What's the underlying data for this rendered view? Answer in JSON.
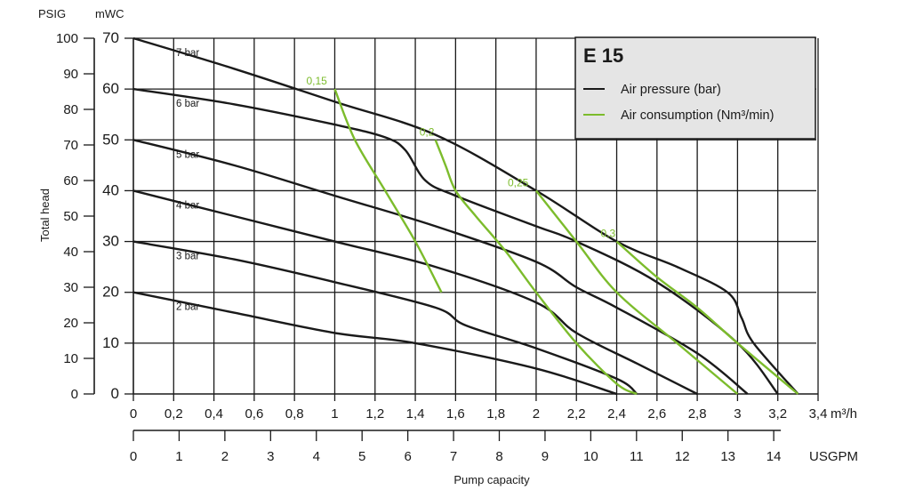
{
  "chart_data": {
    "type": "line",
    "title": "E 15",
    "xlabel": "Pump capacity",
    "ylabel": "Total head",
    "x_unit": "m³/h",
    "x2_unit": "USGPM",
    "y_unit_left": "PSIG",
    "y_unit_inner": "mWC",
    "xlim": [
      0,
      3.4
    ],
    "ylim": [
      0,
      70
    ],
    "grid": true,
    "legend_position": "top-right",
    "x_ticks": [
      0,
      0.2,
      0.4,
      0.6,
      0.8,
      1.0,
      1.2,
      1.4,
      1.6,
      1.8,
      2.0,
      2.2,
      2.4,
      2.6,
      2.8,
      3.0,
      3.2,
      3.4
    ],
    "x_tick_labels": [
      "0",
      "0,2",
      "0,4",
      "0,6",
      "0,8",
      "1",
      "1,2",
      "1,4",
      "1,6",
      "1,8",
      "2",
      "2,2",
      "2,4",
      "2,6",
      "2,8",
      "3",
      "3,2",
      "3,4"
    ],
    "x2_ticks": [
      0,
      1,
      2,
      3,
      4,
      5,
      6,
      7,
      8,
      9,
      10,
      11,
      12,
      13,
      14
    ],
    "x2_tick_labels": [
      "0",
      "1",
      "2",
      "3",
      "4",
      "5",
      "6",
      "7",
      "8",
      "9",
      "10",
      "11",
      "12",
      "13",
      "14"
    ],
    "y_ticks_mwc": [
      0,
      10,
      20,
      30,
      40,
      50,
      60,
      70
    ],
    "y_tick_labels_mwc": [
      "0",
      "10",
      "20",
      "30",
      "40",
      "50",
      "60",
      "70"
    ],
    "y_ticks_psig": [
      0,
      10,
      20,
      30,
      40,
      50,
      60,
      70,
      80,
      90,
      100
    ],
    "y_tick_labels_psig": [
      "0",
      "10",
      "20",
      "30",
      "40",
      "50",
      "60",
      "70",
      "80",
      "90",
      "100"
    ],
    "legend": [
      {
        "label": "Air pressure (bar)",
        "color": "#1a1a1a"
      },
      {
        "label": "Air consumption (Nm³/min)",
        "color": "#7cbc2c"
      }
    ],
    "series_air_pressure": [
      {
        "name": "7 bar",
        "label": "7 bar",
        "color": "#1a1a1a",
        "points": [
          [
            0,
            70
          ],
          [
            0.5,
            64
          ],
          [
            1.0,
            57.5
          ],
          [
            1.5,
            51
          ],
          [
            2.0,
            40
          ],
          [
            2.4,
            30
          ],
          [
            2.7,
            25
          ],
          [
            2.95,
            20
          ],
          [
            3.02,
            15
          ],
          [
            3.08,
            10
          ],
          [
            3.3,
            0
          ]
        ]
      },
      {
        "name": "6 bar",
        "label": "6 bar",
        "color": "#1a1a1a",
        "points": [
          [
            0,
            60
          ],
          [
            0.5,
            57
          ],
          [
            1.0,
            53
          ],
          [
            1.25,
            50.5
          ],
          [
            1.35,
            48
          ],
          [
            1.45,
            42
          ],
          [
            1.6,
            39
          ],
          [
            2.0,
            33
          ],
          [
            2.2,
            30
          ],
          [
            2.6,
            22
          ],
          [
            3.0,
            10
          ],
          [
            3.2,
            0
          ]
        ]
      },
      {
        "name": "5 bar",
        "label": "5 bar",
        "color": "#1a1a1a",
        "points": [
          [
            0,
            50
          ],
          [
            0.5,
            45
          ],
          [
            1.0,
            39
          ],
          [
            1.5,
            33
          ],
          [
            2.0,
            26
          ],
          [
            2.2,
            21
          ],
          [
            2.4,
            17
          ],
          [
            2.8,
            8
          ],
          [
            3.05,
            0
          ]
        ]
      },
      {
        "name": "4 bar",
        "label": "4 bar",
        "color": "#1a1a1a",
        "points": [
          [
            0,
            40
          ],
          [
            0.5,
            35
          ],
          [
            1.0,
            30
          ],
          [
            1.5,
            25
          ],
          [
            2.0,
            18
          ],
          [
            2.2,
            12
          ],
          [
            2.5,
            6
          ],
          [
            2.8,
            0
          ]
        ]
      },
      {
        "name": "3 bar",
        "label": "3 bar",
        "color": "#1a1a1a",
        "points": [
          [
            0,
            30
          ],
          [
            0.5,
            26.5
          ],
          [
            1.0,
            22
          ],
          [
            1.5,
            17
          ],
          [
            1.65,
            13.5
          ],
          [
            2.0,
            9
          ],
          [
            2.4,
            3
          ],
          [
            2.5,
            0
          ]
        ]
      },
      {
        "name": "2 bar",
        "label": "2 bar",
        "color": "#1a1a1a",
        "points": [
          [
            0,
            20
          ],
          [
            0.5,
            16
          ],
          [
            1.0,
            12
          ],
          [
            1.4,
            10
          ],
          [
            2.0,
            5
          ],
          [
            2.4,
            0
          ]
        ]
      }
    ],
    "series_air_consumption": [
      {
        "name": "0,15",
        "label": "0,15",
        "color": "#7cbc2c",
        "points": [
          [
            1.0,
            60
          ],
          [
            1.1,
            50
          ],
          [
            1.25,
            40
          ],
          [
            1.4,
            30
          ],
          [
            1.53,
            20
          ]
        ]
      },
      {
        "name": "0,2",
        "label": "0,2",
        "color": "#7cbc2c",
        "points": [
          [
            1.5,
            50
          ],
          [
            1.55,
            45
          ],
          [
            1.6,
            40
          ],
          [
            1.7,
            35
          ],
          [
            1.85,
            28
          ],
          [
            2.0,
            20
          ],
          [
            2.2,
            10
          ],
          [
            2.4,
            2
          ],
          [
            2.5,
            0
          ]
        ]
      },
      {
        "name": "0,25",
        "label": "0,25",
        "color": "#7cbc2c",
        "points": [
          [
            2.0,
            40
          ],
          [
            2.2,
            30
          ],
          [
            2.4,
            20
          ],
          [
            2.7,
            10
          ],
          [
            3.0,
            0
          ]
        ]
      },
      {
        "name": "0,3",
        "label": "0,3",
        "color": "#7cbc2c",
        "points": [
          [
            2.4,
            30
          ],
          [
            2.6,
            23
          ],
          [
            2.8,
            17
          ],
          [
            3.0,
            10
          ],
          [
            3.3,
            0
          ]
        ]
      }
    ]
  }
}
